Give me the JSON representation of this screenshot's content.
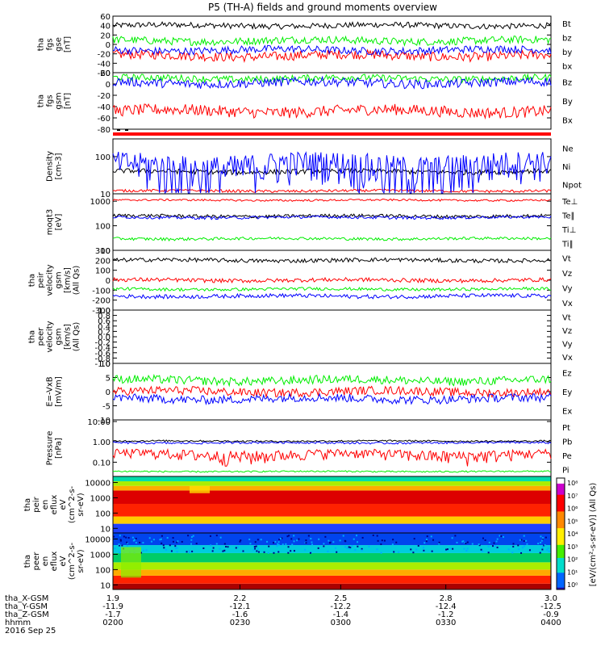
{
  "title": "P5 (TH-A) fields and ground moments overview",
  "colors": {
    "black": "#000000",
    "red": "#ff0000",
    "green": "#00ee00",
    "blue": "#0000ff"
  },
  "chart_data": [
    {
      "type": "line",
      "id": "fgs_gse",
      "ylabel": [
        "tha",
        "fgs",
        "gse",
        "[nT]"
      ],
      "ticks": [
        "60",
        "40",
        "20",
        "0",
        "-20",
        "-40",
        "-60"
      ],
      "ylim": [
        -60,
        60
      ],
      "series": [
        {
          "name": "Bt",
          "color": "black",
          "base": 40,
          "amp": 6
        },
        {
          "name": "bz",
          "color": "red",
          "base": -24,
          "amp": 10
        },
        {
          "name": "by",
          "color": "green",
          "base": 8,
          "amp": 8
        },
        {
          "name": "bx",
          "color": "blue",
          "base": -12,
          "amp": 8
        }
      ]
    },
    {
      "type": "line",
      "id": "fgs_gsm",
      "ylabel": [
        "tha",
        "fgs",
        "gsm",
        "[nT]"
      ],
      "ticks": [
        "20",
        "0",
        "-20",
        "-40",
        "-60",
        "-80"
      ],
      "ylim": [
        -80,
        20
      ],
      "series": [
        {
          "name": "Bz",
          "color": "red",
          "base": -48,
          "amp": 10
        },
        {
          "name": "By",
          "color": "green",
          "base": 10,
          "amp": 6
        },
        {
          "name": "Bx",
          "color": "blue",
          "base": 2,
          "amp": 8
        }
      ]
    },
    {
      "type": "line",
      "id": "density",
      "ylabel": [
        "Density",
        "[cm-3]"
      ],
      "ticks": [
        "100",
        "10"
      ],
      "ylim": [
        10,
        300
      ],
      "log": true,
      "series": [
        {
          "name": "Ne",
          "color": "red",
          "base": 12,
          "amp": 1
        },
        {
          "name": "Ni",
          "color": "black",
          "base": 40,
          "amp": 6
        },
        {
          "name": "Npot",
          "color": "blue",
          "base": 60,
          "amp": 60
        }
      ]
    },
    {
      "type": "line",
      "id": "temp",
      "ylabel": [
        "moqt3",
        "[eV]"
      ],
      "ticks": [
        "1000",
        "100",
        "10"
      ],
      "ylim": [
        10,
        2000
      ],
      "log": true,
      "series": [
        {
          "name": "Te⊥",
          "color": "red",
          "base": 1100,
          "amp": 100
        },
        {
          "name": "Te∥",
          "color": "black",
          "base": 250,
          "amp": 40
        },
        {
          "name": "Ti⊥",
          "color": "blue",
          "base": 220,
          "amp": 30
        },
        {
          "name": "Ti∥",
          "color": "green",
          "base": 30,
          "amp": 4
        }
      ]
    },
    {
      "type": "line",
      "id": "peir_vel",
      "ylabel": [
        "tha",
        "peir",
        "velocity",
        "gsm",
        "[km/s]",
        "(All Qs)"
      ],
      "ticks": [
        "300",
        "200",
        "100",
        "0",
        "-100",
        "-200",
        "-300"
      ],
      "ylim": [
        -300,
        300
      ],
      "series": [
        {
          "name": "Vt",
          "color": "black",
          "base": 200,
          "amp": 20
        },
        {
          "name": "Vz",
          "color": "red",
          "base": 0,
          "amp": 20
        },
        {
          "name": "Vy",
          "color": "green",
          "base": -90,
          "amp": 15
        },
        {
          "name": "Vx",
          "color": "blue",
          "base": -160,
          "amp": 20
        }
      ]
    },
    {
      "type": "line",
      "id": "peer_vel",
      "ylabel": [
        "tha",
        "peer",
        "velocity",
        "gsm",
        "[km/s]",
        "(All Qs)"
      ],
      "ticks": [
        "1.0",
        "0.8",
        "0.6",
        "0.4",
        "0.2",
        "0.0",
        "-0.2",
        "-0.4",
        "-0.6",
        "-0.8",
        "-1.0"
      ],
      "ylim": [
        -1,
        1
      ],
      "series": [
        {
          "name": "Vt",
          "color": "black",
          "base": null,
          "amp": 0
        },
        {
          "name": "Vz",
          "color": "red",
          "base": null,
          "amp": 0
        },
        {
          "name": "Vy",
          "color": "green",
          "base": null,
          "amp": 0
        },
        {
          "name": "Vx",
          "color": "blue",
          "base": null,
          "amp": 0
        }
      ]
    },
    {
      "type": "line",
      "id": "efield",
      "ylabel": [
        "E=-VxB",
        "[mV/m]"
      ],
      "ticks": [
        "10",
        "5",
        "0",
        "-5",
        "-10"
      ],
      "ylim": [
        -10,
        10
      ],
      "series": [
        {
          "name": "Ez",
          "color": "red",
          "base": 0,
          "amp": 1.5
        },
        {
          "name": "Ey",
          "color": "green",
          "base": 4,
          "amp": 1.5
        },
        {
          "name": "Ex",
          "color": "blue",
          "base": -2.5,
          "amp": 1.5
        }
      ]
    },
    {
      "type": "line",
      "id": "pressure",
      "ylabel": [
        "Pressure",
        "[nPa]"
      ],
      "ticks": [
        "10.00",
        "1.00",
        "0.10"
      ],
      "ylim": [
        0.02,
        12
      ],
      "log": true,
      "series": [
        {
          "name": "Pt",
          "color": "black",
          "base": 1.1,
          "amp": 0.1
        },
        {
          "name": "Pb",
          "color": "red",
          "base": 0.25,
          "amp": 0.15
        },
        {
          "name": "Pe",
          "color": "green",
          "base": 0.035,
          "amp": 0.003
        },
        {
          "name": "Pi",
          "color": "blue",
          "base": 0.9,
          "amp": 0.1
        }
      ]
    },
    {
      "type": "heatmap",
      "id": "peir_eflux",
      "ylabel": [
        "tha",
        "peir",
        "en",
        "eflux",
        "eV",
        "(cm^2-s-",
        "sr-eV)"
      ],
      "ticks": [
        "10000",
        "1000",
        "100",
        "10"
      ],
      "ylim": [
        5,
        25000
      ]
    },
    {
      "type": "heatmap",
      "id": "peer_eflux",
      "ylabel": [
        "tha",
        "peer",
        "en",
        "eflux",
        "eV",
        "(cm^2-s-",
        "sr-eV)"
      ],
      "ticks": [
        "10000",
        "1000",
        "100",
        "10"
      ],
      "ylim": [
        5,
        25000
      ]
    }
  ],
  "colorbar": {
    "ticks": [
      "10⁸",
      "10⁷",
      "10⁶",
      "10⁵",
      "10⁴",
      "10³",
      "10²",
      "10¹",
      "10⁰"
    ],
    "label": "[eV/(cm²-s-sr-eV)] (All Qs)"
  },
  "xaxis": {
    "rows": [
      "tha_X-GSM",
      "tha_Y-GSM",
      "tha_Z-GSM",
      "hhmm",
      "2016 Sep 25"
    ],
    "columns": [
      {
        "x": "1.9",
        "y": "-11.9",
        "z": "-1.7",
        "t": "0200"
      },
      {
        "x": "2.2",
        "y": "-12.1",
        "z": "-1.6",
        "t": "0230"
      },
      {
        "x": "2.5",
        "y": "-12.2",
        "z": "-1.4",
        "t": "0300"
      },
      {
        "x": "2.8",
        "y": "-12.4",
        "z": "-1.2",
        "t": "0330"
      },
      {
        "x": "3.0",
        "y": "-12.5",
        "z": "-0.9",
        "t": "0400"
      }
    ]
  }
}
